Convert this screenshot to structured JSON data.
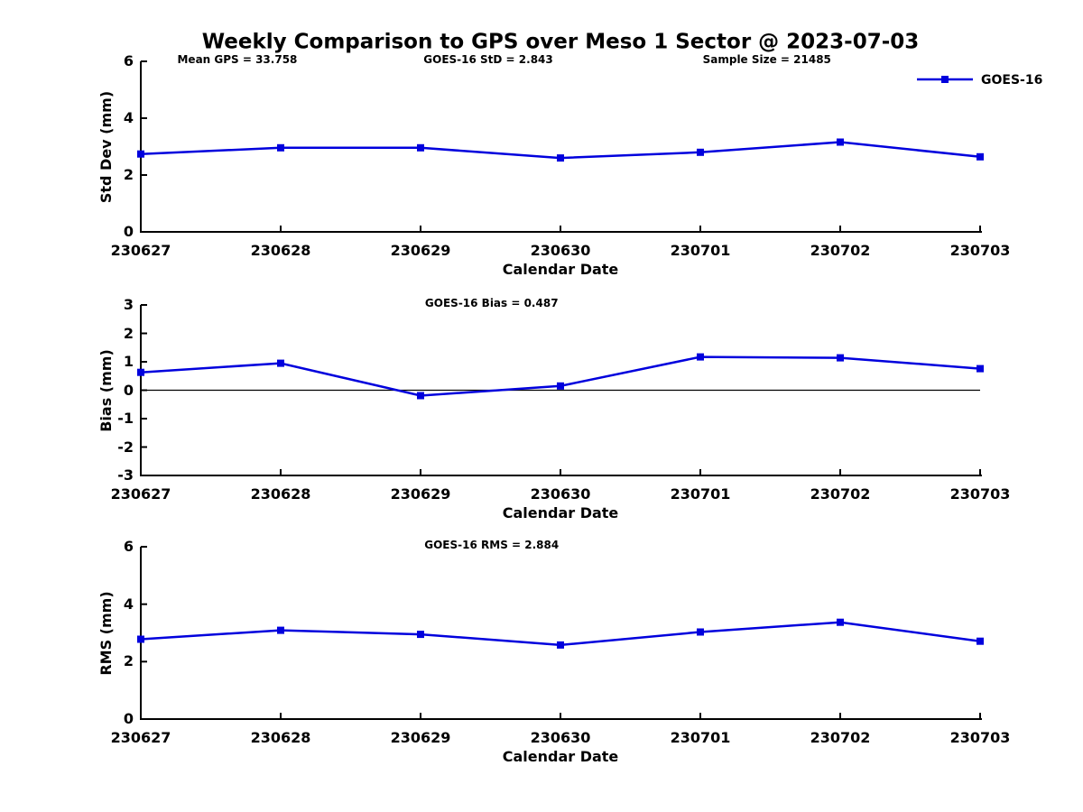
{
  "title": "Weekly Comparison to GPS over Meso 1 Sector @ 2023-07-03",
  "legend": {
    "label": "GOES-16",
    "position": "top-right",
    "color": "#0000DD"
  },
  "colors": {
    "line": "#0000DD",
    "axis": "#000000",
    "background": "#ffffff"
  },
  "chart_data": [
    {
      "id": "std-dev",
      "type": "line",
      "marker": "square",
      "grid": false,
      "xlabel": "Calendar Date",
      "ylabel": "Std Dev (mm)",
      "categories": [
        "230627",
        "230628",
        "230629",
        "230630",
        "230701",
        "230702",
        "230703"
      ],
      "series": [
        {
          "name": "GOES-16",
          "values": [
            2.74,
            2.96,
            2.96,
            2.6,
            2.8,
            3.16,
            2.64
          ]
        }
      ],
      "ylim": [
        0,
        6
      ],
      "yticks": [
        0,
        2,
        4,
        6
      ],
      "zero_line": false,
      "annotations": [
        {
          "text": "Mean GPS = 33.758",
          "xfrac": 0.115
        },
        {
          "text": "GOES-16 StD = 2.843",
          "xfrac": 0.414
        },
        {
          "text": "Sample Size = 21485",
          "xfrac": 0.746
        }
      ]
    },
    {
      "id": "bias",
      "type": "line",
      "marker": "square",
      "grid": false,
      "xlabel": "Calendar Date",
      "ylabel": "Bias (mm)",
      "categories": [
        "230627",
        "230628",
        "230629",
        "230630",
        "230701",
        "230702",
        "230703"
      ],
      "series": [
        {
          "name": "GOES-16",
          "values": [
            0.63,
            0.95,
            -0.19,
            0.15,
            1.17,
            1.14,
            0.76
          ]
        }
      ],
      "ylim": [
        -3,
        3
      ],
      "yticks": [
        3,
        2,
        1,
        0,
        -1,
        -2,
        -3
      ],
      "zero_line": true,
      "annotations": [
        {
          "text": "GOES-16 Bias  = 0.487",
          "xfrac": 0.418
        }
      ]
    },
    {
      "id": "rms",
      "type": "line",
      "marker": "square",
      "grid": false,
      "xlabel": "Calendar Date",
      "ylabel": "RMS (mm)",
      "categories": [
        "230627",
        "230628",
        "230629",
        "230630",
        "230701",
        "230702",
        "230703"
      ],
      "series": [
        {
          "name": "GOES-16",
          "values": [
            2.78,
            3.09,
            2.95,
            2.58,
            3.03,
            3.37,
            2.71
          ]
        }
      ],
      "ylim": [
        0,
        6
      ],
      "yticks": [
        0,
        2,
        4,
        6
      ],
      "zero_line": false,
      "annotations": [
        {
          "text": "GOES-16 RMS = 2.884",
          "xfrac": 0.418
        }
      ]
    }
  ]
}
